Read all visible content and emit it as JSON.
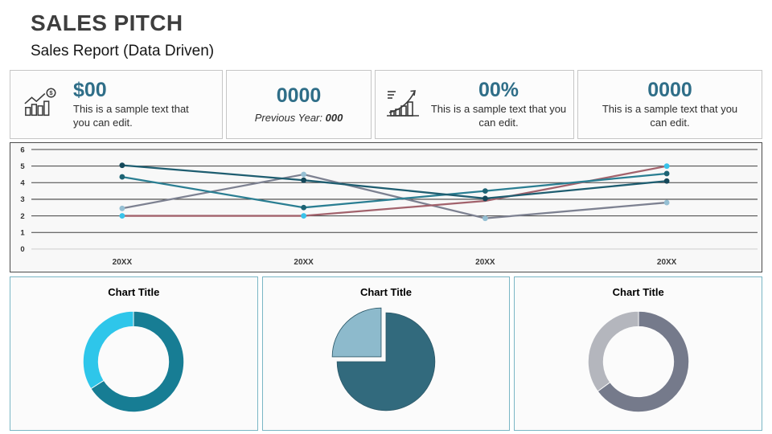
{
  "header": {
    "title": "SALES PITCH",
    "subtitle": "Sales Report (Data Driven)"
  },
  "stats": {
    "card1": {
      "icon": "bar-chart-dollar-icon",
      "value": "$00",
      "description": "This is a sample text that you can edit."
    },
    "card2": {
      "value": "0000",
      "description_prefix": "Previous Year: ",
      "description_value": "000"
    },
    "card3": {
      "icon": "growth-arrow-chart-icon",
      "value": "00%",
      "description": "This is a sample text that you can edit."
    },
    "card4": {
      "value": "0000",
      "description": "This is a sample text that you can edit."
    }
  },
  "chart_data": [
    {
      "type": "line",
      "title": "",
      "categories": [
        "20XX",
        "20XX",
        "20XX",
        "20XX"
      ],
      "xlabel": "",
      "ylabel": "",
      "ylim": [
        0,
        6
      ],
      "ytick_step": 1,
      "grid": true,
      "legend": "none",
      "series": [
        {
          "name": "dark-teal-series",
          "values": [
            5.05,
            4.15,
            3.05,
            4.1
          ],
          "color": "#1E5D70",
          "marker_color": "#14485A",
          "markers": [
            true,
            true,
            true,
            true
          ]
        },
        {
          "name": "teal-series",
          "values": [
            4.35,
            2.5,
            3.5,
            4.55
          ],
          "color": "#2A7E92",
          "marker_color": "#1D6374",
          "markers": [
            true,
            true,
            true,
            true
          ]
        },
        {
          "name": "gray-series",
          "values": [
            2.45,
            4.5,
            1.85,
            2.8
          ],
          "color": "#7D8191",
          "marker_color": "#95BFD3",
          "markers": [
            true,
            true,
            true,
            true
          ]
        },
        {
          "name": "red-series",
          "values": [
            2.0,
            2.0,
            2.9,
            5.0
          ],
          "color": "#A2626C",
          "marker_color": "#3AC3EA",
          "markers": [
            true,
            true,
            false,
            true
          ]
        }
      ]
    },
    {
      "type": "pie",
      "variant": "donut",
      "title": "Chart Title",
      "values": [
        66,
        34
      ],
      "colors": [
        "#177D94",
        "#2EC6EA"
      ],
      "start_angle": 0
    },
    {
      "type": "pie",
      "variant": "pie-exploded",
      "title": "Chart Title",
      "values": [
        75,
        25
      ],
      "colors": [
        "#326A7D",
        "#8DBACC"
      ],
      "exploded_index": 1,
      "start_angle": 0
    },
    {
      "type": "pie",
      "variant": "donut",
      "title": "Chart Title",
      "values": [
        65,
        35
      ],
      "colors": [
        "#757A8B",
        "#B4B6BD"
      ],
      "start_angle": 0
    }
  ],
  "colors": {
    "accent_teal": "#2F6E88",
    "panel_border_teal": "#7AB6C5",
    "chart_border": "#4B4B4B",
    "card_border": "#C6C6C6"
  }
}
